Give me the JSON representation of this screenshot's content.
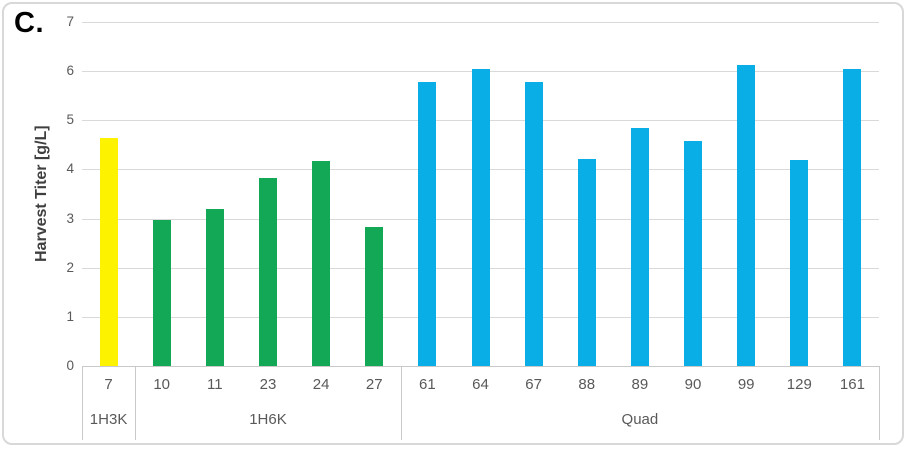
{
  "panel_label": "C.",
  "chart_data": {
    "type": "bar",
    "title": "",
    "xlabel": "",
    "ylabel": "Harvest Titer [g/L]",
    "ylim": [
      0,
      7
    ],
    "yticks": [
      0,
      1,
      2,
      3,
      4,
      5,
      6,
      7
    ],
    "grid": "horizontal",
    "legend_position": "none",
    "groups": [
      {
        "label": "1H3K",
        "color": "#FDF200",
        "bars": [
          {
            "label": "7",
            "value": 4.65
          }
        ]
      },
      {
        "label": "1H6K",
        "color": "#12A855",
        "bars": [
          {
            "label": "10",
            "value": 2.98
          },
          {
            "label": "11",
            "value": 3.2
          },
          {
            "label": "23",
            "value": 3.83
          },
          {
            "label": "24",
            "value": 4.18
          },
          {
            "label": "27",
            "value": 2.82
          }
        ]
      },
      {
        "label": "Quad",
        "color": "#0AAEE6",
        "bars": [
          {
            "label": "61",
            "value": 5.78
          },
          {
            "label": "64",
            "value": 6.05
          },
          {
            "label": "67",
            "value": 5.78
          },
          {
            "label": "88",
            "value": 4.22
          },
          {
            "label": "89",
            "value": 4.85
          },
          {
            "label": "90",
            "value": 4.58
          },
          {
            "label": "99",
            "value": 6.13
          },
          {
            "label": "129",
            "value": 4.2
          },
          {
            "label": "161",
            "value": 6.05
          }
        ]
      }
    ],
    "colors": {
      "gridline": "#D9D9D9",
      "axis_line": "#C9C9C9",
      "separator": "#C9C9C9",
      "tick_text": "#595959",
      "axis_title_text": "#3F3F3F",
      "frame_border": "#D8D8D8",
      "background": "#FFFFFF"
    }
  }
}
